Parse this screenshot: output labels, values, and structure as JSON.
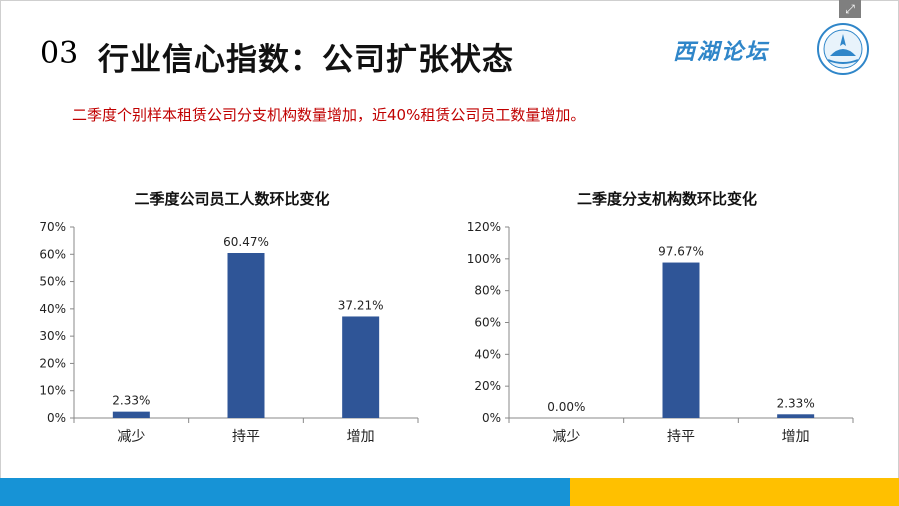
{
  "header": {
    "number": "03",
    "title": "行业信心指数：公司扩张状态",
    "logo_text": "西湖论坛"
  },
  "subtitle": "二季度个别样本租赁公司分支机构数量增加，近40%租赁公司员工数量增加。",
  "colors": {
    "bar": "#2f5597",
    "subtitle": "#c00000",
    "band_blue": "#1793d6",
    "band_gold": "#ffc000"
  },
  "chart_data": [
    {
      "type": "bar",
      "title": "二季度公司员工人数环比变化",
      "categories": [
        "减少",
        "持平",
        "增加"
      ],
      "values": [
        2.33,
        60.47,
        37.21
      ],
      "value_labels": [
        "2.33%",
        "60.47%",
        "37.21%"
      ],
      "ylim": [
        0,
        70
      ],
      "yticks": [
        0,
        10,
        20,
        30,
        40,
        50,
        60,
        70
      ],
      "ytick_labels": [
        "0%",
        "10%",
        "20%",
        "30%",
        "40%",
        "50%",
        "60%",
        "70%"
      ],
      "xlabel": "",
      "ylabel": "",
      "grid": false,
      "legend": "none"
    },
    {
      "type": "bar",
      "title": "二季度分支机构数环比变化",
      "categories": [
        "减少",
        "持平",
        "增加"
      ],
      "values": [
        0.0,
        97.67,
        2.33
      ],
      "value_labels": [
        "0.00%",
        "97.67%",
        "2.33%"
      ],
      "ylim": [
        0,
        120
      ],
      "yticks": [
        0,
        20,
        40,
        60,
        80,
        100,
        120
      ],
      "ytick_labels": [
        "0%",
        "20%",
        "40%",
        "60%",
        "80%",
        "100%",
        "120%"
      ],
      "xlabel": "",
      "ylabel": "",
      "grid": false,
      "legend": "none"
    }
  ]
}
